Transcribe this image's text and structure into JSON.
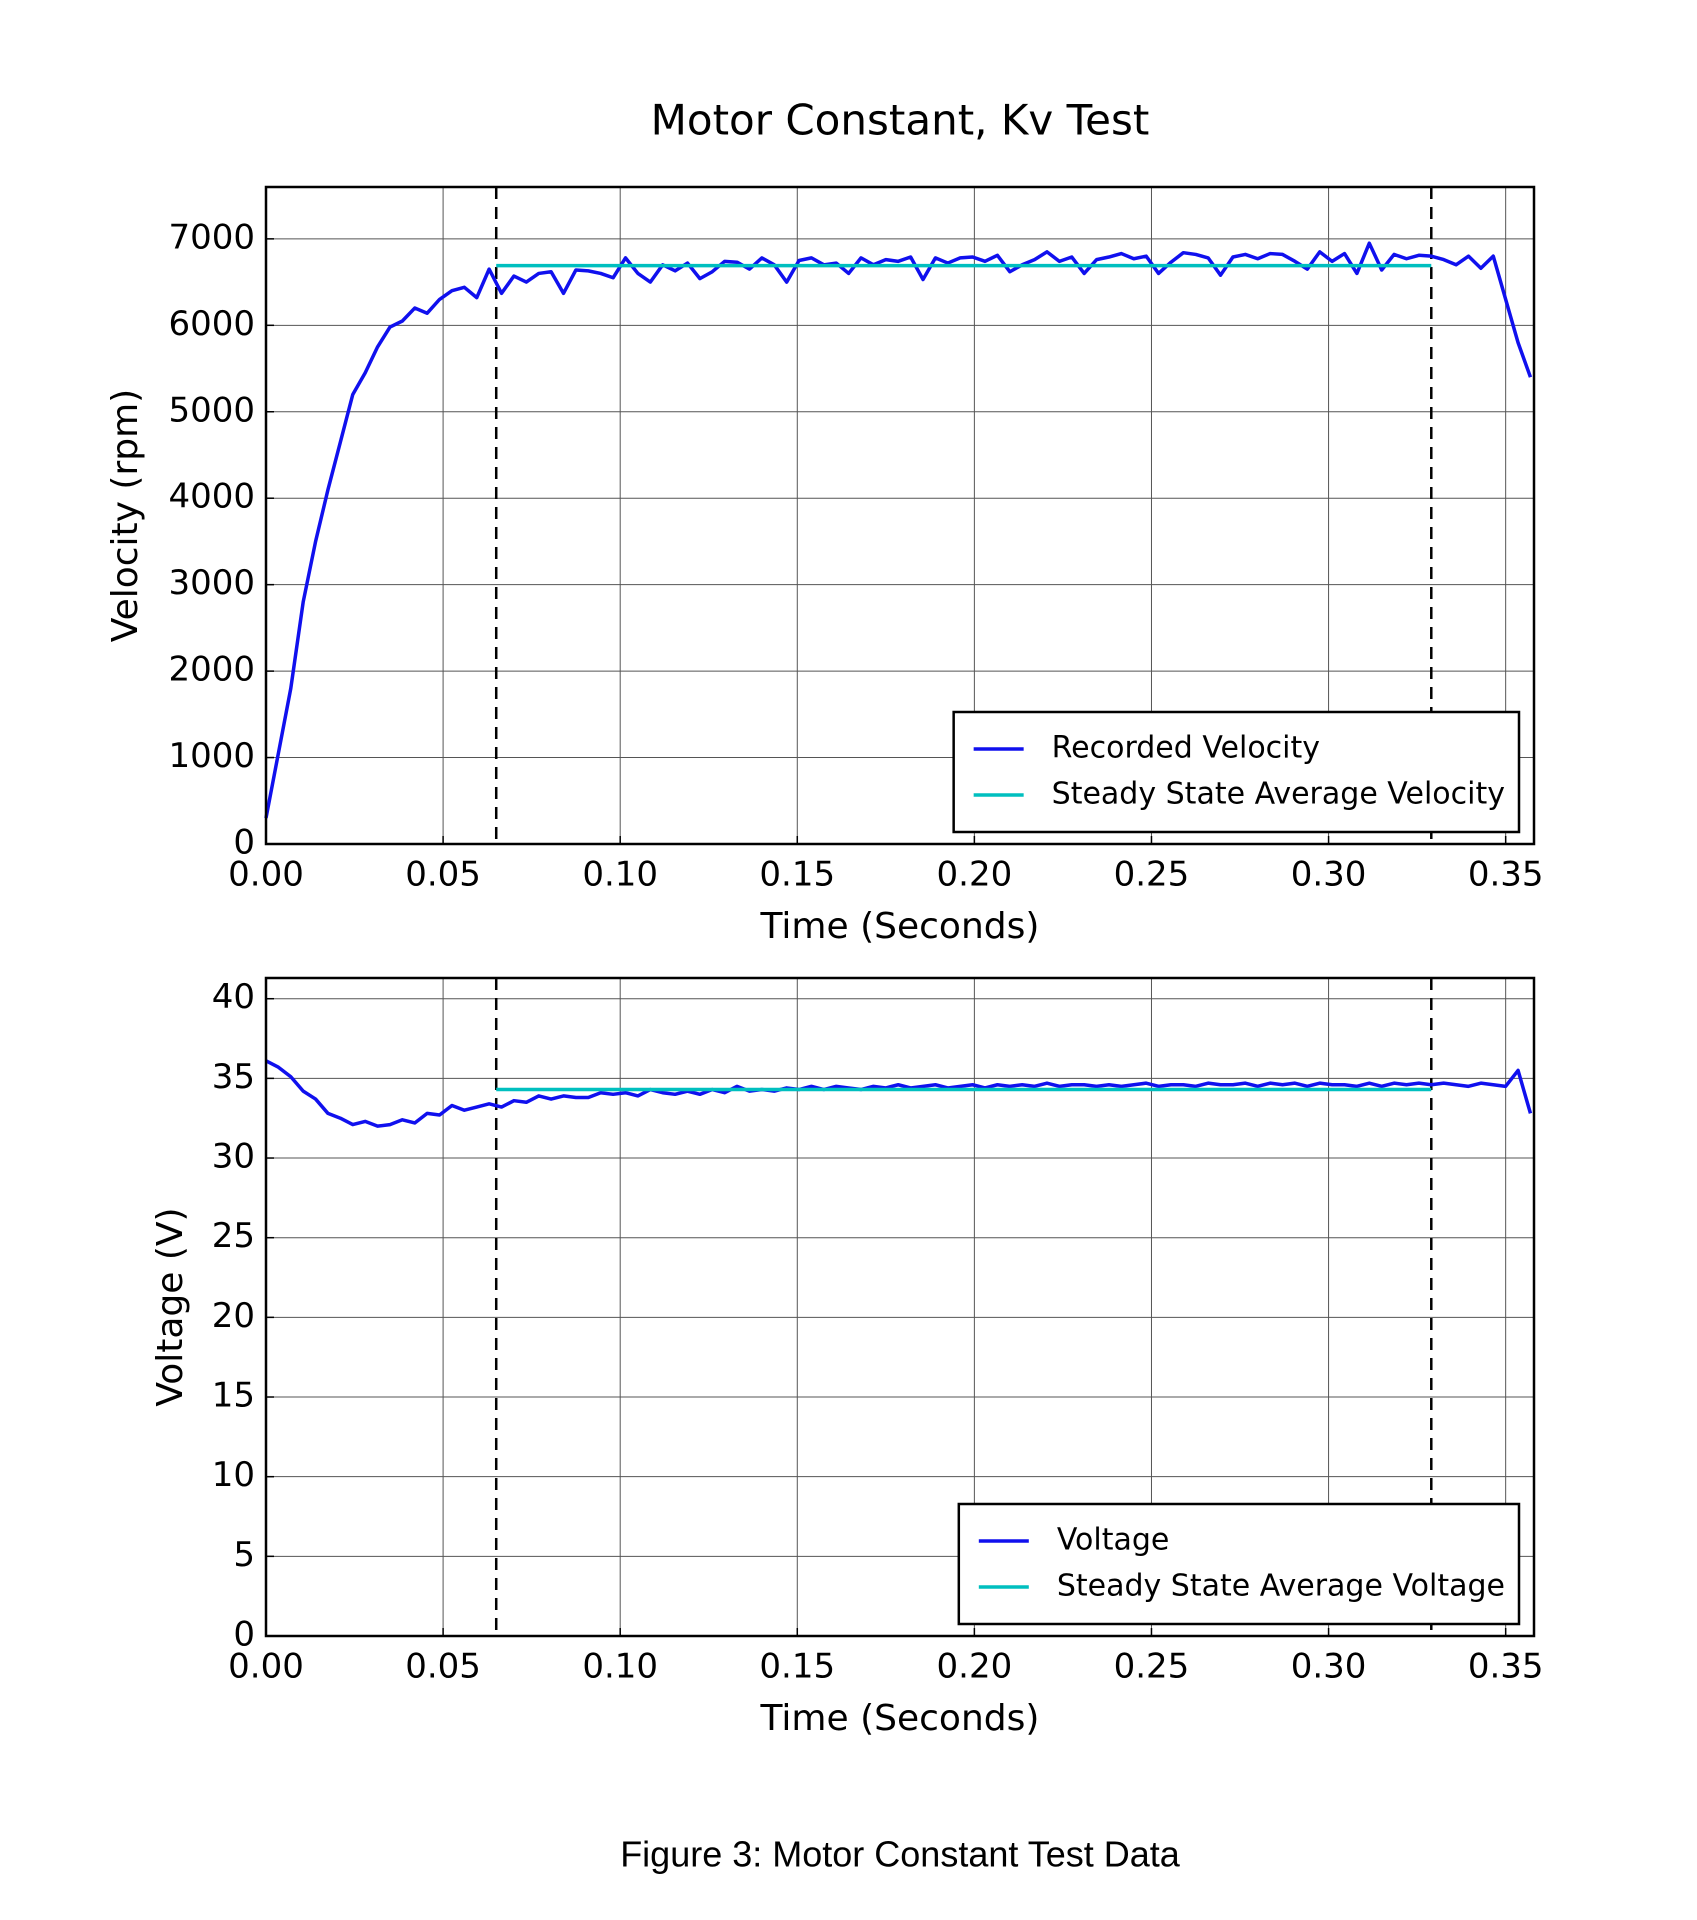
{
  "title": "Motor Constant, Kv Test",
  "caption": "Figure 3: Motor Constant Test Data",
  "chart_data": [
    {
      "type": "line",
      "xlabel": "Time (Seconds)",
      "ylabel": "Velocity (rpm)",
      "xlim": [
        0,
        0.358
      ],
      "ylim": [
        0,
        7600
      ],
      "xticks": [
        {
          "value": 0,
          "label": "0.00"
        },
        {
          "value": 0.05,
          "label": "0.05"
        },
        {
          "value": 0.1,
          "label": "0.10"
        },
        {
          "value": 0.15,
          "label": "0.15"
        },
        {
          "value": 0.2,
          "label": "0.20"
        },
        {
          "value": 0.25,
          "label": "0.25"
        },
        {
          "value": 0.3,
          "label": "0.30"
        },
        {
          "value": 0.35,
          "label": "0.35"
        }
      ],
      "yticks": [
        0,
        1000,
        2000,
        3000,
        4000,
        5000,
        6000,
        7000
      ],
      "grid": true,
      "legend": "lower right",
      "vlines": [
        0.065,
        0.329
      ],
      "series": [
        {
          "name": "Recorded Velocity",
          "color": "#1010ee",
          "x": [
            0,
            0.0035,
            0.007,
            0.0105,
            0.014,
            0.0175,
            0.021,
            0.0245,
            0.028,
            0.0315,
            0.035,
            0.0385,
            0.042,
            0.0455,
            0.049,
            0.0525,
            0.056,
            0.0595,
            0.063,
            0.0665,
            0.07,
            0.0735,
            0.077,
            0.0805,
            0.084,
            0.0875,
            0.091,
            0.0945,
            0.098,
            0.1015,
            0.105,
            0.1085,
            0.112,
            0.1155,
            0.119,
            0.1225,
            0.126,
            0.1295,
            0.133,
            0.1365,
            0.14,
            0.1435,
            0.147,
            0.1505,
            0.154,
            0.1575,
            0.161,
            0.1645,
            0.168,
            0.1715,
            0.175,
            0.1785,
            0.182,
            0.1855,
            0.189,
            0.1925,
            0.196,
            0.1995,
            0.203,
            0.2065,
            0.21,
            0.2135,
            0.217,
            0.2205,
            0.224,
            0.2275,
            0.231,
            0.2345,
            0.238,
            0.2415,
            0.245,
            0.2485,
            0.252,
            0.2555,
            0.259,
            0.2625,
            0.266,
            0.2695,
            0.273,
            0.2765,
            0.28,
            0.2835,
            0.287,
            0.2905,
            0.294,
            0.2975,
            0.301,
            0.3045,
            0.308,
            0.3115,
            0.315,
            0.3185,
            0.322,
            0.3255,
            0.329,
            0.3325,
            0.336,
            0.3395,
            0.343,
            0.3465,
            0.35,
            0.3535,
            0.357
          ],
          "values": [
            300,
            1050,
            1800,
            2800,
            3500,
            4100,
            4650,
            5200,
            5450,
            5750,
            5980,
            6050,
            6200,
            6140,
            6300,
            6400,
            6440,
            6320,
            6650,
            6370,
            6570,
            6500,
            6600,
            6620,
            6370,
            6640,
            6630,
            6600,
            6550,
            6780,
            6600,
            6500,
            6700,
            6630,
            6720,
            6540,
            6620,
            6740,
            6730,
            6650,
            6780,
            6700,
            6500,
            6750,
            6780,
            6700,
            6720,
            6600,
            6780,
            6700,
            6760,
            6740,
            6790,
            6530,
            6780,
            6720,
            6780,
            6790,
            6740,
            6810,
            6620,
            6700,
            6760,
            6850,
            6740,
            6790,
            6600,
            6760,
            6790,
            6830,
            6770,
            6800,
            6600,
            6730,
            6840,
            6820,
            6780,
            6580,
            6790,
            6820,
            6770,
            6830,
            6820,
            6740,
            6650,
            6850,
            6740,
            6830,
            6600,
            6950,
            6640,
            6820,
            6770,
            6810,
            6800,
            6760,
            6700,
            6800,
            6660,
            6800,
            6300,
            5800,
            5400
          ]
        },
        {
          "name": "Steady State Average Velocity",
          "color": "#00bfbf",
          "x": [
            0.065,
            0.329
          ],
          "values": [
            6690,
            6690
          ]
        }
      ]
    },
    {
      "type": "line",
      "xlabel": "Time (Seconds)",
      "ylabel": "Voltage (V)",
      "xlim": [
        0,
        0.358
      ],
      "ylim": [
        0,
        41.3
      ],
      "xticks": [
        {
          "value": 0,
          "label": "0.00"
        },
        {
          "value": 0.05,
          "label": "0.05"
        },
        {
          "value": 0.1,
          "label": "0.10"
        },
        {
          "value": 0.15,
          "label": "0.15"
        },
        {
          "value": 0.2,
          "label": "0.20"
        },
        {
          "value": 0.25,
          "label": "0.25"
        },
        {
          "value": 0.3,
          "label": "0.30"
        },
        {
          "value": 0.35,
          "label": "0.35"
        }
      ],
      "yticks": [
        0,
        5,
        10,
        15,
        20,
        25,
        30,
        35,
        40
      ],
      "grid": true,
      "legend": "lower right",
      "vlines": [
        0.065,
        0.329
      ],
      "series": [
        {
          "name": "Voltage",
          "color": "#1010ee",
          "x": [
            0,
            0.0035,
            0.007,
            0.0105,
            0.014,
            0.0175,
            0.021,
            0.0245,
            0.028,
            0.0315,
            0.035,
            0.0385,
            0.042,
            0.0455,
            0.049,
            0.0525,
            0.056,
            0.0595,
            0.063,
            0.0665,
            0.07,
            0.0735,
            0.077,
            0.0805,
            0.084,
            0.0875,
            0.091,
            0.0945,
            0.098,
            0.1015,
            0.105,
            0.1085,
            0.112,
            0.1155,
            0.119,
            0.1225,
            0.126,
            0.1295,
            0.133,
            0.1365,
            0.14,
            0.1435,
            0.147,
            0.1505,
            0.154,
            0.1575,
            0.161,
            0.1645,
            0.168,
            0.1715,
            0.175,
            0.1785,
            0.182,
            0.1855,
            0.189,
            0.1925,
            0.196,
            0.1995,
            0.203,
            0.2065,
            0.21,
            0.2135,
            0.217,
            0.2205,
            0.224,
            0.2275,
            0.231,
            0.2345,
            0.238,
            0.2415,
            0.245,
            0.2485,
            0.252,
            0.2555,
            0.259,
            0.2625,
            0.266,
            0.2695,
            0.273,
            0.2765,
            0.28,
            0.2835,
            0.287,
            0.2905,
            0.294,
            0.2975,
            0.301,
            0.3045,
            0.308,
            0.3115,
            0.315,
            0.3185,
            0.322,
            0.3255,
            0.329,
            0.3325,
            0.336,
            0.3395,
            0.343,
            0.3465,
            0.35,
            0.3535,
            0.357
          ],
          "values": [
            36.1,
            35.7,
            35.1,
            34.2,
            33.7,
            32.8,
            32.5,
            32.1,
            32.3,
            32.0,
            32.1,
            32.4,
            32.2,
            32.8,
            32.7,
            33.3,
            33.0,
            33.2,
            33.4,
            33.2,
            33.6,
            33.5,
            33.9,
            33.7,
            33.9,
            33.8,
            33.8,
            34.1,
            34.0,
            34.1,
            33.9,
            34.3,
            34.1,
            34.0,
            34.2,
            34.0,
            34.3,
            34.1,
            34.5,
            34.2,
            34.3,
            34.2,
            34.4,
            34.3,
            34.5,
            34.3,
            34.5,
            34.4,
            34.3,
            34.5,
            34.4,
            34.6,
            34.4,
            34.5,
            34.6,
            34.4,
            34.5,
            34.6,
            34.4,
            34.6,
            34.5,
            34.6,
            34.5,
            34.7,
            34.5,
            34.6,
            34.6,
            34.5,
            34.6,
            34.5,
            34.6,
            34.7,
            34.5,
            34.6,
            34.6,
            34.5,
            34.7,
            34.6,
            34.6,
            34.7,
            34.5,
            34.7,
            34.6,
            34.7,
            34.5,
            34.7,
            34.6,
            34.6,
            34.5,
            34.7,
            34.5,
            34.7,
            34.6,
            34.7,
            34.6,
            34.7,
            34.6,
            34.5,
            34.7,
            34.6,
            34.5,
            35.5,
            32.8
          ]
        },
        {
          "name": "Steady State Average Voltage",
          "color": "#00bfbf",
          "x": [
            0.065,
            0.329
          ],
          "values": [
            34.3,
            34.3
          ]
        }
      ]
    }
  ]
}
